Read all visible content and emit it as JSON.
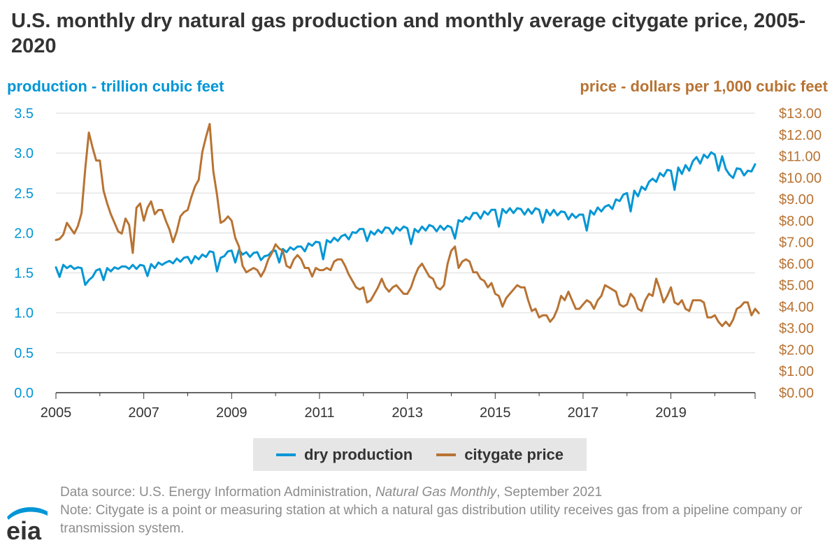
{
  "title": "U.S. monthly dry natural gas production and monthly average citygate price, 2005-2020",
  "left_axis_title": "production - trillion cubic feet",
  "right_axis_title": "price - dollars per 1,000 cubic feet",
  "colors": {
    "production": "#0096d6",
    "price": "#b87333",
    "grid": "#d9d9d9",
    "axis": "#333333"
  },
  "legend": {
    "production": "dry production",
    "price": "citygate price"
  },
  "footer": {
    "source_prefix": "Data source: U.S. Energy Information Administration, ",
    "source_italic": "Natural Gas Monthly",
    "source_suffix": ", September 2021",
    "note": "Note: Citygate is a point or measuring station at which a natural gas distribution utility receives gas from a pipeline company or transmission system."
  },
  "logo_text": "eia",
  "chart_data": {
    "type": "line",
    "x_ticks": [
      "2005",
      "2007",
      "2009",
      "2011",
      "2013",
      "2015",
      "2017",
      "2019"
    ],
    "xlim": [
      "2005-01",
      "2020-12"
    ],
    "y_left": {
      "ticks": [
        "0.0",
        "0.5",
        "1.0",
        "1.5",
        "2.0",
        "2.5",
        "3.0",
        "3.5"
      ],
      "ylim": [
        0,
        3.5
      ]
    },
    "y_right": {
      "ticks": [
        "$0.00",
        "$1.00",
        "$2.00",
        "$3.00",
        "$4.00",
        "$5.00",
        "$6.00",
        "$7.00",
        "$8.00",
        "$9.00",
        "$10.00",
        "$11.00",
        "$12.00",
        "$13.00"
      ],
      "ylim": [
        0,
        13
      ]
    },
    "grid": true,
    "legend_position": "bottom",
    "series": [
      {
        "name": "dry production",
        "axis": "left",
        "start": "2005-01",
        "values": [
          1.57,
          1.45,
          1.6,
          1.56,
          1.59,
          1.55,
          1.57,
          1.56,
          1.35,
          1.41,
          1.45,
          1.53,
          1.55,
          1.41,
          1.56,
          1.52,
          1.57,
          1.55,
          1.58,
          1.58,
          1.55,
          1.6,
          1.55,
          1.6,
          1.59,
          1.46,
          1.61,
          1.56,
          1.63,
          1.6,
          1.63,
          1.65,
          1.62,
          1.68,
          1.64,
          1.69,
          1.7,
          1.62,
          1.71,
          1.67,
          1.73,
          1.7,
          1.77,
          1.76,
          1.52,
          1.69,
          1.71,
          1.77,
          1.78,
          1.63,
          1.79,
          1.73,
          1.76,
          1.7,
          1.75,
          1.76,
          1.66,
          1.71,
          1.72,
          1.77,
          1.78,
          1.63,
          1.8,
          1.76,
          1.82,
          1.79,
          1.83,
          1.83,
          1.77,
          1.87,
          1.84,
          1.89,
          1.88,
          1.67,
          1.91,
          1.88,
          1.94,
          1.9,
          1.96,
          1.98,
          1.92,
          2.01,
          2.0,
          2.05,
          2.05,
          1.9,
          2.02,
          1.98,
          2.04,
          2.0,
          2.07,
          2.06,
          1.99,
          2.07,
          2.03,
          2.08,
          2.06,
          1.86,
          2.05,
          2.01,
          2.08,
          2.03,
          2.1,
          2.08,
          2.02,
          2.09,
          2.04,
          2.09,
          2.07,
          1.93,
          2.16,
          2.14,
          2.2,
          2.17,
          2.25,
          2.25,
          2.18,
          2.27,
          2.23,
          2.29,
          2.29,
          2.08,
          2.3,
          2.25,
          2.31,
          2.25,
          2.31,
          2.3,
          2.23,
          2.3,
          2.24,
          2.31,
          2.29,
          2.13,
          2.29,
          2.22,
          2.29,
          2.22,
          2.27,
          2.26,
          2.17,
          2.24,
          2.19,
          2.23,
          2.23,
          2.03,
          2.28,
          2.23,
          2.32,
          2.27,
          2.33,
          2.35,
          2.3,
          2.42,
          2.4,
          2.48,
          2.5,
          2.27,
          2.53,
          2.46,
          2.58,
          2.54,
          2.64,
          2.68,
          2.64,
          2.75,
          2.71,
          2.79,
          2.78,
          2.54,
          2.82,
          2.74,
          2.85,
          2.78,
          2.9,
          2.95,
          2.87,
          2.98,
          2.94,
          3.01,
          2.98,
          2.78,
          2.96,
          2.8,
          2.73,
          2.69,
          2.81,
          2.8,
          2.72,
          2.78,
          2.77,
          2.86
        ]
      },
      {
        "name": "citygate price",
        "axis": "right",
        "start": "2005-01",
        "values": [
          7.1,
          7.15,
          7.35,
          7.9,
          7.65,
          7.4,
          7.75,
          8.35,
          10.4,
          12.1,
          11.4,
          10.8,
          10.8,
          9.4,
          8.8,
          8.3,
          7.9,
          7.5,
          7.4,
          8.1,
          7.8,
          6.5,
          8.6,
          8.8,
          8.0,
          8.6,
          8.9,
          8.3,
          8.5,
          8.5,
          8.0,
          7.6,
          7.0,
          7.5,
          8.2,
          8.4,
          8.5,
          9.1,
          9.6,
          9.9,
          11.2,
          11.9,
          12.5,
          10.3,
          9.2,
          7.9,
          8.0,
          8.2,
          8.0,
          7.2,
          6.8,
          5.9,
          5.6,
          5.7,
          5.8,
          5.7,
          5.4,
          5.7,
          6.2,
          6.5,
          6.9,
          6.7,
          6.6,
          5.9,
          5.8,
          6.2,
          6.4,
          6.2,
          5.8,
          5.8,
          5.4,
          5.8,
          5.7,
          5.7,
          5.8,
          5.7,
          6.1,
          6.2,
          6.2,
          5.9,
          5.5,
          5.2,
          4.9,
          4.8,
          4.9,
          4.2,
          4.3,
          4.6,
          4.9,
          5.3,
          4.9,
          4.7,
          4.9,
          5.0,
          4.8,
          4.6,
          4.6,
          4.9,
          5.4,
          5.8,
          6.0,
          5.7,
          5.4,
          5.3,
          4.9,
          4.8,
          5.0,
          6.0,
          6.6,
          6.8,
          5.8,
          6.1,
          6.2,
          6.1,
          5.6,
          5.6,
          5.3,
          5.2,
          4.9,
          5.1,
          4.6,
          4.5,
          4.0,
          4.4,
          4.6,
          4.8,
          5.0,
          4.9,
          4.9,
          4.3,
          3.8,
          3.9,
          3.5,
          3.6,
          3.6,
          3.3,
          3.5,
          3.9,
          4.5,
          4.3,
          4.7,
          4.3,
          3.9,
          3.9,
          4.1,
          4.3,
          4.2,
          3.9,
          4.3,
          4.5,
          5.0,
          4.9,
          4.8,
          4.7,
          4.1,
          4.0,
          4.1,
          4.6,
          4.4,
          3.9,
          3.8,
          4.3,
          4.6,
          4.5,
          5.3,
          4.8,
          4.2,
          4.5,
          4.9,
          4.2,
          4.1,
          4.3,
          3.9,
          3.8,
          4.3,
          4.3,
          4.3,
          4.2,
          3.5,
          3.5,
          3.6,
          3.3,
          3.1,
          3.3,
          3.1,
          3.4,
          3.9,
          4.0,
          4.2,
          4.2,
          3.6,
          3.9,
          3.7
        ]
      }
    ]
  }
}
